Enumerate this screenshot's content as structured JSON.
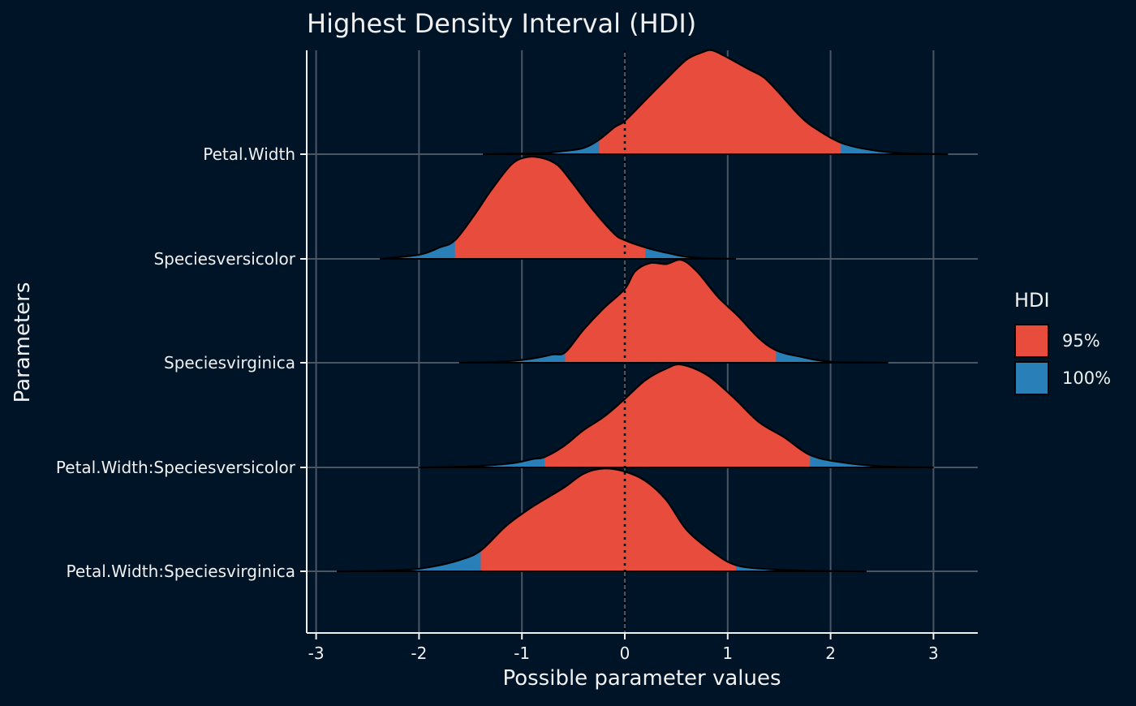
{
  "chart_data": {
    "type": "ridgeline-density",
    "title": "Highest Density Interval (HDI)",
    "xlabel": "Possible parameter values",
    "ylabel": "Parameters",
    "xlim": [
      -3.1,
      3.4
    ],
    "x_ticks": [
      -3,
      -2,
      -1,
      0,
      1,
      2,
      3
    ],
    "x_tick_labels": [
      "-3",
      "-2",
      "-1",
      "0",
      "1",
      "2",
      "3"
    ],
    "grid": true,
    "reference_line_x": 0,
    "legend": {
      "title": "HDI",
      "position": "right",
      "items": [
        {
          "label": "95%",
          "color": "#e74c3c"
        },
        {
          "label": "100%",
          "color": "#2980b9"
        }
      ]
    },
    "colors": {
      "background": "#001428",
      "grid": "#4a5564",
      "text": "#f0f0f0",
      "outline": "#000000",
      "reference": "#000000"
    },
    "series": [
      {
        "name": "Petal.Width",
        "hdi_95": [
          -0.25,
          2.1
        ],
        "range": [
          -1.38,
          3.14
        ],
        "density_max": 1.0,
        "density": [
          [
            -1.38,
            0.0
          ],
          [
            -1.1,
            0.005
          ],
          [
            -0.8,
            0.01
          ],
          [
            -0.6,
            0.03
          ],
          [
            -0.4,
            0.06
          ],
          [
            -0.25,
            0.14
          ],
          [
            -0.1,
            0.26
          ],
          [
            0.0,
            0.32
          ],
          [
            0.2,
            0.52
          ],
          [
            0.4,
            0.72
          ],
          [
            0.6,
            0.91
          ],
          [
            0.75,
            0.98
          ],
          [
            0.85,
            1.0
          ],
          [
            1.0,
            0.93
          ],
          [
            1.2,
            0.82
          ],
          [
            1.35,
            0.74
          ],
          [
            1.5,
            0.59
          ],
          [
            1.7,
            0.37
          ],
          [
            1.85,
            0.25
          ],
          [
            2.1,
            0.11
          ],
          [
            2.4,
            0.04
          ],
          [
            2.7,
            0.01
          ],
          [
            3.14,
            0.0
          ]
        ]
      },
      {
        "name": "Speciesversicolor",
        "hdi_95": [
          -1.65,
          0.2
        ],
        "range": [
          -2.38,
          1.08
        ],
        "density_max": 0.98,
        "density": [
          [
            -2.38,
            0.0
          ],
          [
            -2.0,
            0.04
          ],
          [
            -1.8,
            0.11
          ],
          [
            -1.65,
            0.18
          ],
          [
            -1.45,
            0.44
          ],
          [
            -1.3,
            0.66
          ],
          [
            -1.1,
            0.91
          ],
          [
            -0.95,
            0.98
          ],
          [
            -0.8,
            0.97
          ],
          [
            -0.65,
            0.9
          ],
          [
            -0.5,
            0.72
          ],
          [
            -0.3,
            0.46
          ],
          [
            -0.1,
            0.24
          ],
          [
            0.0,
            0.18
          ],
          [
            0.2,
            0.11
          ],
          [
            0.4,
            0.06
          ],
          [
            0.6,
            0.02
          ],
          [
            0.8,
            0.005
          ],
          [
            1.08,
            0.0
          ]
        ]
      },
      {
        "name": "Speciesvirginica",
        "hdi_95": [
          -0.58,
          1.47
        ],
        "range": [
          -1.61,
          2.56
        ],
        "density_max": 0.99,
        "density": [
          [
            -1.61,
            0.0
          ],
          [
            -1.2,
            0.01
          ],
          [
            -0.9,
            0.04
          ],
          [
            -0.7,
            0.08
          ],
          [
            -0.58,
            0.1
          ],
          [
            -0.4,
            0.32
          ],
          [
            -0.2,
            0.53
          ],
          [
            0.0,
            0.71
          ],
          [
            0.1,
            0.88
          ],
          [
            0.25,
            0.96
          ],
          [
            0.4,
            0.95
          ],
          [
            0.55,
            0.99
          ],
          [
            0.7,
            0.88
          ],
          [
            0.9,
            0.64
          ],
          [
            1.1,
            0.45
          ],
          [
            1.3,
            0.24
          ],
          [
            1.47,
            0.12
          ],
          [
            1.7,
            0.06
          ],
          [
            2.0,
            0.01
          ],
          [
            2.56,
            0.0
          ]
        ]
      },
      {
        "name": "Petal.Width:Speciesversicolor",
        "hdi_95": [
          -0.78,
          1.8
        ],
        "range": [
          -2.0,
          3.0
        ],
        "density_max": 0.99,
        "density": [
          [
            -2.0,
            0.0
          ],
          [
            -1.5,
            0.01
          ],
          [
            -1.1,
            0.04
          ],
          [
            -0.9,
            0.08
          ],
          [
            -0.78,
            0.1
          ],
          [
            -0.6,
            0.2
          ],
          [
            -0.4,
            0.36
          ],
          [
            -0.2,
            0.49
          ],
          [
            0.0,
            0.66
          ],
          [
            0.2,
            0.84
          ],
          [
            0.4,
            0.95
          ],
          [
            0.55,
            0.99
          ],
          [
            0.8,
            0.89
          ],
          [
            1.05,
            0.68
          ],
          [
            1.3,
            0.44
          ],
          [
            1.55,
            0.29
          ],
          [
            1.8,
            0.12
          ],
          [
            2.1,
            0.05
          ],
          [
            2.5,
            0.01
          ],
          [
            3.0,
            0.0
          ]
        ]
      },
      {
        "name": "Petal.Width:Speciesvirginica",
        "hdi_95": [
          -1.4,
          1.08
        ],
        "range": [
          -2.8,
          2.35
        ],
        "density_max": 0.99,
        "density": [
          [
            -2.8,
            0.0
          ],
          [
            -2.2,
            0.01
          ],
          [
            -1.9,
            0.04
          ],
          [
            -1.6,
            0.11
          ],
          [
            -1.4,
            0.2
          ],
          [
            -1.15,
            0.44
          ],
          [
            -0.9,
            0.62
          ],
          [
            -0.6,
            0.8
          ],
          [
            -0.4,
            0.94
          ],
          [
            -0.2,
            0.99
          ],
          [
            0.0,
            0.96
          ],
          [
            0.2,
            0.87
          ],
          [
            0.4,
            0.69
          ],
          [
            0.6,
            0.4
          ],
          [
            0.85,
            0.19
          ],
          [
            1.08,
            0.06
          ],
          [
            1.4,
            0.02
          ],
          [
            1.8,
            0.005
          ],
          [
            2.35,
            0.0
          ]
        ]
      }
    ]
  }
}
